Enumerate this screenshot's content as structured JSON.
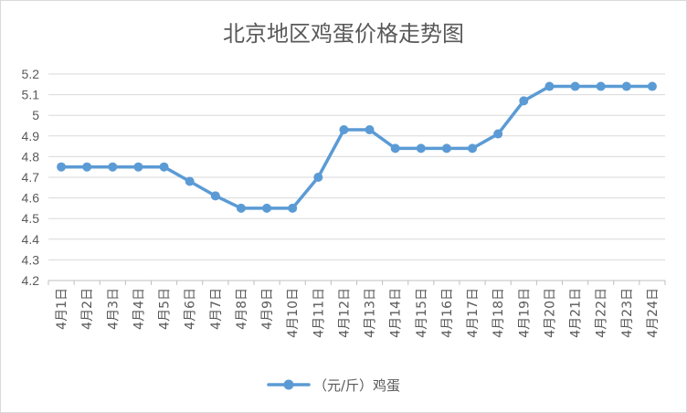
{
  "chart_data": {
    "type": "line",
    "title": "北京地区鸡蛋价格走势图",
    "xlabel": "",
    "ylabel": "",
    "ylim": [
      4.2,
      5.2
    ],
    "yticks": [
      "4.2",
      "4.3",
      "4.4",
      "4.5",
      "4.6",
      "4.7",
      "4.8",
      "4.9",
      "5",
      "5.1",
      "5.2"
    ],
    "grid": true,
    "legend_position": "bottom",
    "categories": [
      "4月1日",
      "4月2日",
      "4月3日",
      "4月4日",
      "4月5日",
      "4月6日",
      "4月7日",
      "4月8日",
      "4月9日",
      "4月10日",
      "4月11日",
      "4月12日",
      "4月13日",
      "4月14日",
      "4月15日",
      "4月16日",
      "4月17日",
      "4月18日",
      "4月19日",
      "4月20日",
      "4月21日",
      "4月22日",
      "4月23日",
      "4月24日"
    ],
    "series": [
      {
        "name": "（元/斤）鸡蛋",
        "color": "#5b9bd5",
        "values": [
          4.75,
          4.75,
          4.75,
          4.75,
          4.75,
          4.68,
          4.61,
          4.55,
          4.55,
          4.55,
          4.7,
          4.93,
          4.93,
          4.84,
          4.84,
          4.84,
          4.84,
          4.91,
          5.07,
          5.14,
          5.14,
          5.14,
          5.14,
          5.14
        ]
      }
    ]
  }
}
